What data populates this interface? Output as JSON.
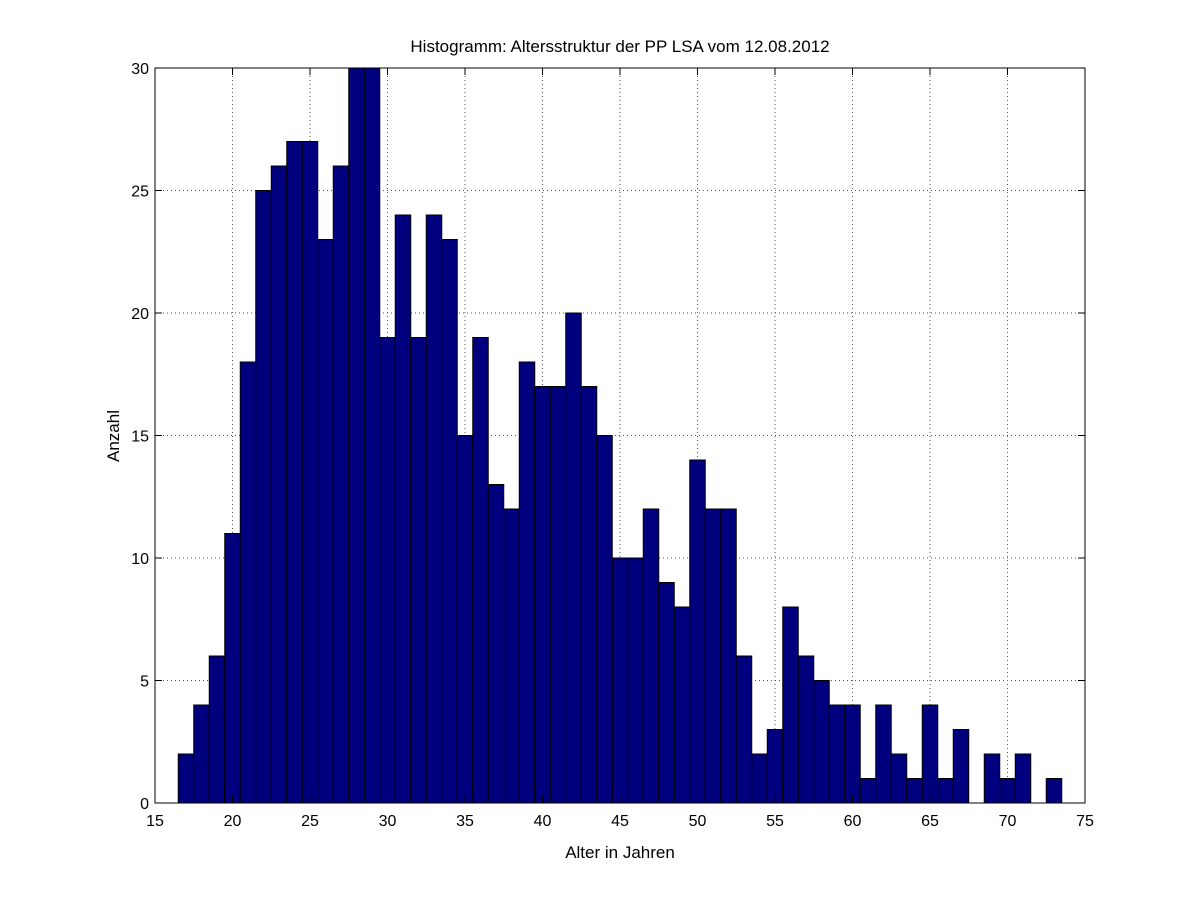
{
  "chart_data": {
    "type": "bar",
    "title": "Histogramm: Altersstruktur der PP LSA vom 12.08.2012",
    "xlabel": "Alter in Jahren",
    "ylabel": "Anzahl",
    "xlim": [
      15,
      75
    ],
    "ylim": [
      0,
      30
    ],
    "xticks": [
      15,
      20,
      25,
      30,
      35,
      40,
      45,
      50,
      55,
      60,
      65,
      70,
      75
    ],
    "yticks": [
      0,
      5,
      10,
      15,
      20,
      25,
      30
    ],
    "grid": true,
    "bar_color": "#00007f",
    "bin_width": 1,
    "x": [
      17,
      18,
      19,
      20,
      21,
      22,
      23,
      24,
      25,
      26,
      27,
      28,
      29,
      30,
      31,
      32,
      33,
      34,
      35,
      36,
      37,
      38,
      39,
      40,
      41,
      42,
      43,
      44,
      45,
      46,
      47,
      48,
      49,
      50,
      51,
      52,
      53,
      54,
      55,
      56,
      57,
      58,
      59,
      60,
      61,
      62,
      63,
      64,
      65,
      66,
      67,
      68,
      69,
      70,
      71,
      72,
      73
    ],
    "values": [
      2,
      4,
      6,
      11,
      18,
      25,
      26,
      27,
      27,
      23,
      26,
      30,
      30,
      19,
      24,
      19,
      24,
      23,
      15,
      19,
      13,
      12,
      18,
      17,
      17,
      20,
      17,
      15,
      10,
      10,
      12,
      9,
      8,
      14,
      12,
      12,
      6,
      2,
      3,
      8,
      6,
      5,
      4,
      4,
      1,
      4,
      2,
      1,
      4,
      1,
      3,
      0,
      2,
      1,
      2,
      0,
      1
    ]
  }
}
